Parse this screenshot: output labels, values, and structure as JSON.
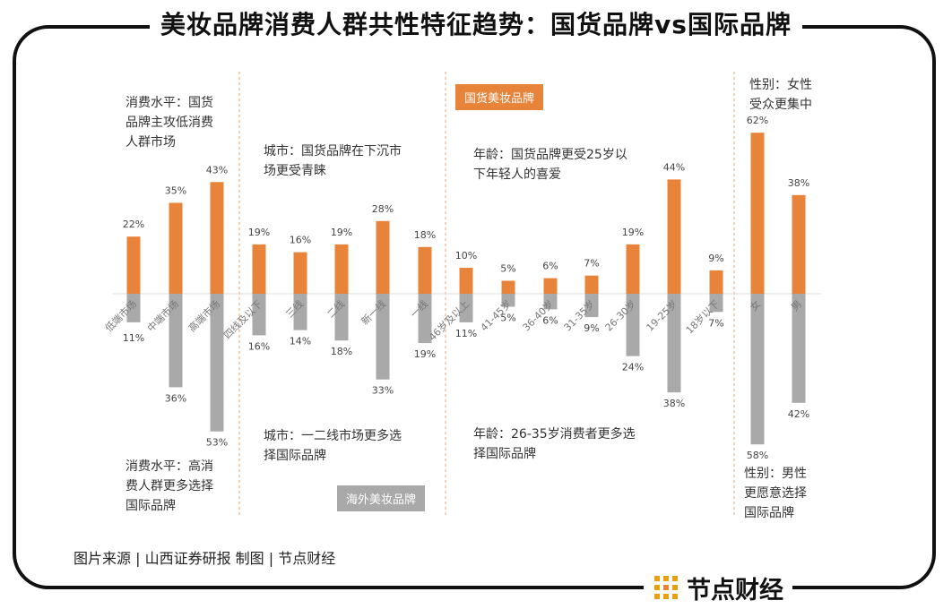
{
  "title": "美妆品牌消费人群共性特征趋势：国货品牌vs国际品牌",
  "colors": {
    "domestic": "#E8833A",
    "international": "#A9A9A9",
    "frame": "#111111",
    "divider": "#E8A070"
  },
  "chart_data": {
    "type": "bar",
    "categories": [
      "低端市场",
      "中端市场",
      "高端市场",
      "四线及以下",
      "三线",
      "二线",
      "新一线",
      "一线",
      "46岁及以上",
      "41-45岁",
      "36-40岁",
      "31-35岁",
      "26-30岁",
      "19-25岁",
      "18岁以下",
      "女",
      "男"
    ],
    "groups": [
      {
        "name": "消费水平",
        "categories": [
          "低端市场",
          "中端市场",
          "高端市场"
        ]
      },
      {
        "name": "城市",
        "categories": [
          "四线及以下",
          "三线",
          "二线",
          "新一线",
          "一线"
        ]
      },
      {
        "name": "年龄",
        "categories": [
          "46岁及以上",
          "41-45岁",
          "36-40岁",
          "31-35岁",
          "26-30岁",
          "19-25岁",
          "18岁以下"
        ]
      },
      {
        "name": "性别",
        "categories": [
          "女",
          "男"
        ]
      }
    ],
    "series": [
      {
        "name": "国货美妆品牌",
        "direction": "up",
        "values": [
          22,
          35,
          43,
          19,
          16,
          19,
          28,
          18,
          10,
          5,
          6,
          7,
          19,
          44,
          9,
          62,
          38
        ],
        "labels": [
          "22%",
          "35%",
          "43%",
          "19%",
          "16%",
          "19%",
          "28%",
          "18%",
          "10%",
          "5%",
          "6%",
          "7%",
          "19%",
          "44%",
          "9%",
          "62%",
          "38%"
        ]
      },
      {
        "name": "海外美妆品牌",
        "direction": "down",
        "values": [
          11,
          36,
          53,
          16,
          14,
          18,
          33,
          19,
          11,
          5,
          6,
          9,
          24,
          38,
          7,
          58,
          42
        ],
        "labels": [
          "11%",
          "36%",
          "53%",
          "16%",
          "14%",
          "18%",
          "33%",
          "19%",
          "11%",
          "5%",
          "6%",
          "9%",
          "24%",
          "38%",
          "7%",
          "58%",
          "42%"
        ]
      }
    ],
    "value_unit": "%"
  },
  "legend": {
    "domestic": "国货美妆品牌",
    "international": "海外美妆品牌"
  },
  "annotations": {
    "spend_domestic": [
      "消费水平：国货",
      "品牌主攻低消费",
      "人群市场"
    ],
    "spend_intl": [
      "消费水平：高消",
      "费人群更多选择",
      "国际品牌"
    ],
    "city_domestic": [
      "城市：国货品牌在下沉市",
      "场更受青睐"
    ],
    "city_intl": [
      "城市：一二线市场更多选",
      "择国际品牌"
    ],
    "age_domestic": [
      "年龄：国货品牌更受25岁以",
      "下年轻人的喜爱"
    ],
    "age_intl": [
      "年龄：26-35岁消费者更多选",
      "择国际品牌"
    ],
    "gender_domestic": [
      "性别：女性",
      "受众更集中"
    ],
    "gender_intl": [
      "性别：男性",
      "更愿意选择",
      "国际品牌"
    ]
  },
  "source": "图片来源 | 山西证券研报    制图 | 节点财经",
  "brand": {
    "name": "节点财经",
    "icon": "jiedian-logo-icon"
  }
}
